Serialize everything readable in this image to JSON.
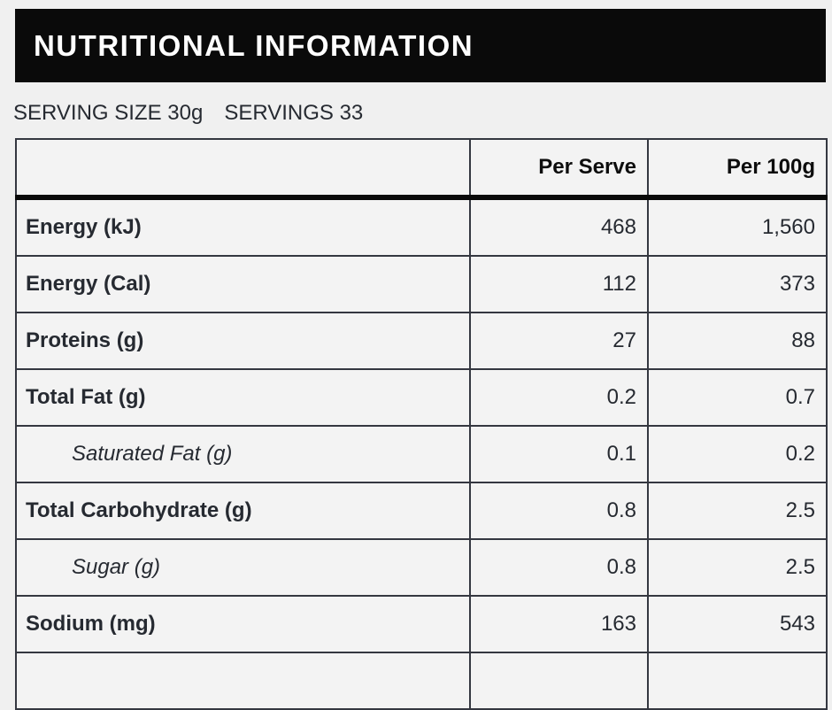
{
  "header": {
    "title": "NUTRITIONAL INFORMATION"
  },
  "serving_info": {
    "serving_size": "SERVING SIZE 30g",
    "servings": "SERVINGS 33"
  },
  "table": {
    "columns": [
      "",
      "Per Serve",
      "Per 100g"
    ],
    "rows": [
      {
        "label": "Energy (kJ)",
        "indent": false,
        "per_serve": "468",
        "per_100g": "1,560"
      },
      {
        "label": "Energy (Cal)",
        "indent": false,
        "per_serve": "112",
        "per_100g": "373"
      },
      {
        "label": "Proteins (g)",
        "indent": false,
        "per_serve": "27",
        "per_100g": "88"
      },
      {
        "label": "Total Fat (g)",
        "indent": false,
        "per_serve": "0.2",
        "per_100g": "0.7"
      },
      {
        "label": "Saturated Fat (g)",
        "indent": true,
        "per_serve": "0.1",
        "per_100g": "0.2"
      },
      {
        "label": "Total Carbohydrate (g)",
        "indent": false,
        "per_serve": "0.8",
        "per_100g": "2.5"
      },
      {
        "label": "Sugar (g)",
        "indent": true,
        "per_serve": "0.8",
        "per_100g": "2.5"
      },
      {
        "label": "Sodium (mg)",
        "indent": false,
        "per_serve": "163",
        "per_100g": "543"
      },
      {
        "label": "",
        "indent": false,
        "per_serve": "",
        "per_100g": ""
      }
    ]
  },
  "colors": {
    "page_background": "#f0f0f0",
    "header_bar_background": "#0a0a0a",
    "header_bar_text": "#ffffff",
    "table_border": "#343740",
    "table_cell_background": "#f3f3f3",
    "body_text": "#262a31",
    "header_divider": "#0a0a0a"
  }
}
